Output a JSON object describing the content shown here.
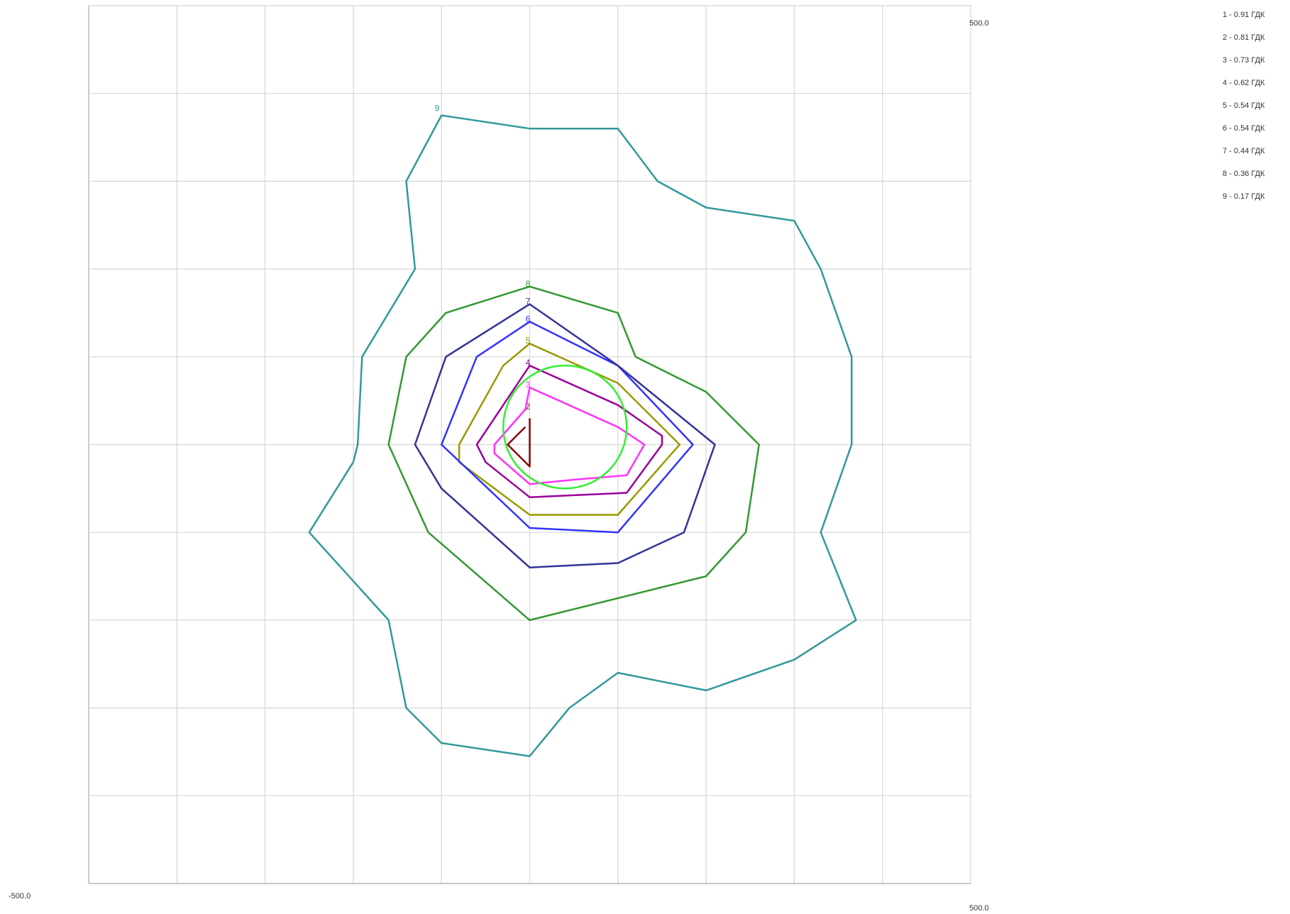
{
  "chart_data": {
    "type": "line",
    "corner_labels": {
      "top_right": "500.0",
      "bottom_left": "-500.0",
      "bottom_right": "500.0"
    },
    "xlim": [
      -500,
      500
    ],
    "ylim": [
      -500,
      500
    ],
    "grid": true,
    "grid_divisions": {
      "x": 10,
      "y": 10
    },
    "legend": {
      "placement": "top-right",
      "items": [
        "1 - 0.91 ГДК",
        "2 - 0.81 ГДК",
        "3 - 0.73 ГДК",
        "4 - 0.62 ГДК",
        "5 - 0.54 ГДК",
        "6 - 0.54 ГДК",
        "7 - 0.44 ГДК",
        "8 - 0.36 ГДК",
        "9 - 0.17 ГДК"
      ]
    },
    "series": [
      {
        "id": "2",
        "color": "#8b0000",
        "label": "2",
        "label_at": [
          -2,
          40
        ],
        "points": [
          [
            0,
            30
          ],
          [
            0,
            -25
          ],
          [
            -25,
            0
          ],
          [
            -5,
            20
          ]
        ],
        "closed": false
      },
      {
        "id": "3",
        "color": "#ff33ff",
        "label": "3",
        "label_at": [
          -2,
          65
        ],
        "points": [
          [
            0,
            65
          ],
          [
            100,
            20
          ],
          [
            130,
            0
          ],
          [
            110,
            -35
          ],
          [
            50,
            -40
          ],
          [
            0,
            -45
          ],
          [
            -40,
            -10
          ],
          [
            -40,
            0
          ],
          [
            -5,
            40
          ]
        ],
        "closed": true
      },
      {
        "id": "4",
        "color": "#990099",
        "label": "4",
        "label_at": [
          -2,
          90
        ],
        "points": [
          [
            0,
            90
          ],
          [
            100,
            45
          ],
          [
            150,
            10
          ],
          [
            150,
            0
          ],
          [
            110,
            -55
          ],
          [
            0,
            -60
          ],
          [
            -50,
            -20
          ],
          [
            -60,
            0
          ],
          [
            -20,
            60
          ]
        ],
        "closed": true
      },
      {
        "id": "5",
        "color": "#999900",
        "label": "5",
        "label_at": [
          -2,
          115
        ],
        "points": [
          [
            0,
            115
          ],
          [
            100,
            70
          ],
          [
            170,
            0
          ],
          [
            100,
            -80
          ],
          [
            0,
            -80
          ],
          [
            -80,
            -20
          ],
          [
            -80,
            0
          ],
          [
            -30,
            90
          ]
        ],
        "closed": true
      },
      {
        "id": "6",
        "color": "#3333ff",
        "label": "6",
        "label_at": [
          -2,
          140
        ],
        "points": [
          [
            0,
            140
          ],
          [
            100,
            90
          ],
          [
            185,
            0
          ],
          [
            100,
            -100
          ],
          [
            0,
            -95
          ],
          [
            -100,
            0
          ],
          [
            -60,
            100
          ]
        ],
        "closed": true
      },
      {
        "id": "7",
        "color": "#333399",
        "label": "7",
        "label_at": [
          -2,
          160
        ],
        "points": [
          [
            0,
            160
          ],
          [
            100,
            90
          ],
          [
            210,
            0
          ],
          [
            175,
            -100
          ],
          [
            100,
            -135
          ],
          [
            0,
            -140
          ],
          [
            -100,
            -50
          ],
          [
            -130,
            0
          ],
          [
            -95,
            100
          ]
        ],
        "closed": true
      },
      {
        "id": "8",
        "color": "#339933",
        "label": "8",
        "label_at": [
          -2,
          180
        ],
        "points": [
          [
            0,
            180
          ],
          [
            100,
            150
          ],
          [
            120,
            100
          ],
          [
            200,
            60
          ],
          [
            260,
            0
          ],
          [
            245,
            -100
          ],
          [
            200,
            -150
          ],
          [
            0,
            -200
          ],
          [
            -115,
            -100
          ],
          [
            -160,
            0
          ],
          [
            -140,
            100
          ],
          [
            -95,
            150
          ]
        ],
        "closed": true
      },
      {
        "id": "9",
        "color": "#339999",
        "label": "9",
        "label_at": [
          -105,
          380
        ],
        "points": [
          [
            -100,
            375
          ],
          [
            0,
            360
          ],
          [
            100,
            360
          ],
          [
            145,
            300
          ],
          [
            200,
            270
          ],
          [
            300,
            255
          ],
          [
            330,
            200
          ],
          [
            365,
            100
          ],
          [
            365,
            0
          ],
          [
            330,
            -100
          ],
          [
            370,
            -200
          ],
          [
            300,
            -245
          ],
          [
            200,
            -280
          ],
          [
            100,
            -260
          ],
          [
            45,
            -300
          ],
          [
            0,
            -355
          ],
          [
            -100,
            -340
          ],
          [
            -140,
            -300
          ],
          [
            -160,
            -200
          ],
          [
            -250,
            -100
          ],
          [
            -200,
            -20
          ],
          [
            -195,
            0
          ],
          [
            -190,
            100
          ],
          [
            -130,
            200
          ],
          [
            -140,
            300
          ]
        ],
        "closed": true
      },
      {
        "id": "circle",
        "color": "#33ee33",
        "shape": "circle",
        "center": [
          40,
          20
        ],
        "radius": 70
      }
    ]
  }
}
